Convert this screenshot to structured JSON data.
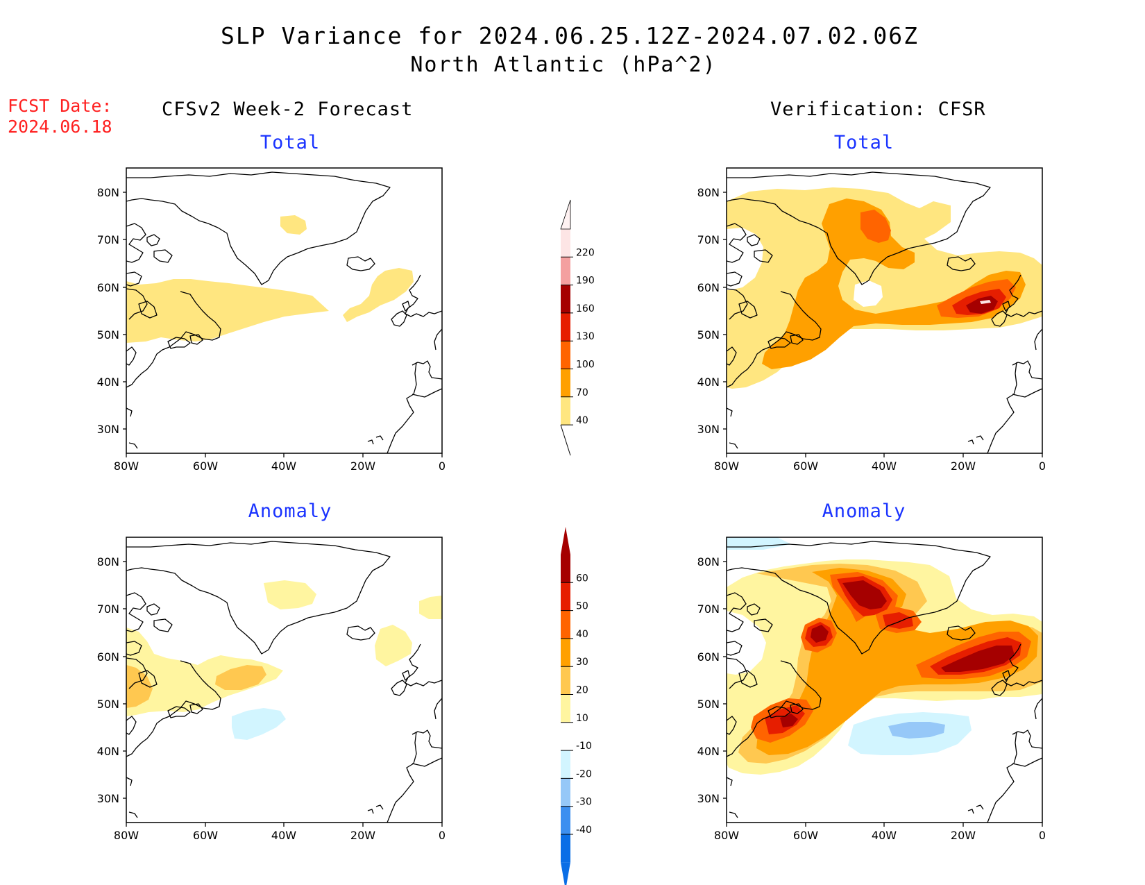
{
  "title_line1": "SLP Variance for 2024.06.25.12Z-2024.07.02.06Z",
  "title_line2": "North Atlantic (hPa^2)",
  "fcst_label": "FCST Date:",
  "fcst_date": "2024.06.18",
  "left_column_title": "CFSv2 Week-2 Forecast",
  "right_column_title": "Verification: CFSR",
  "panels": [
    {
      "id": "fcst-total",
      "title": "Total"
    },
    {
      "id": "verif-total",
      "title": "Total"
    },
    {
      "id": "fcst-anomaly",
      "title": "Anomaly"
    },
    {
      "id": "verif-anomaly",
      "title": "Anomaly"
    }
  ],
  "axes": {
    "lat_ticks": [
      "80N",
      "70N",
      "60N",
      "50N",
      "40N",
      "30N"
    ],
    "lon_ticks": [
      "80W",
      "60W",
      "40W",
      "20W",
      "0"
    ]
  },
  "colorbar_total": {
    "levels": [
      40,
      70,
      100,
      130,
      160,
      190,
      220
    ],
    "labels": [
      "40",
      "70",
      "100",
      "130",
      "160",
      "190",
      "220"
    ],
    "colors": [
      "#ffe680",
      "#ffa000",
      "#ff6400",
      "#e61e00",
      "#a50000",
      "#f4a0a0",
      "#fde5e5"
    ]
  },
  "colorbar_anomaly": {
    "levels": [
      -40,
      -30,
      -20,
      -10,
      10,
      20,
      30,
      40,
      50,
      60
    ],
    "labels": [
      "-40",
      "-30",
      "-20",
      "-10",
      "10",
      "20",
      "30",
      "40",
      "50",
      "60"
    ],
    "colors": [
      "#0a6ee6",
      "#3c8ff0",
      "#96c8f8",
      "#d2f5ff",
      "#ffffff",
      "#fff5a0",
      "#ffc850",
      "#ffa000",
      "#ff6400",
      "#e61e00",
      "#a50000"
    ]
  }
}
